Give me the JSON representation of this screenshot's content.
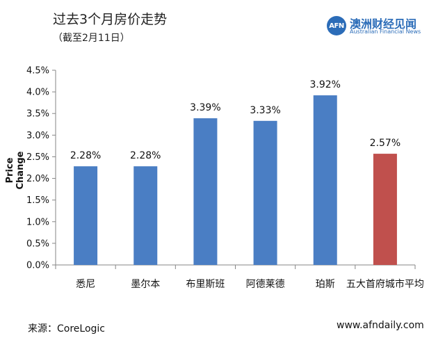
{
  "header": {
    "title": "过去3个月房价走势",
    "subtitle": "（截至2月11日）"
  },
  "logo": {
    "mark": "AFN",
    "name_cn": "澳洲财经见闻",
    "name_en": "Australian Financial News"
  },
  "chart_data": {
    "type": "bar",
    "title": "过去3个月房价走势",
    "ylabel": "Price Change",
    "ylim": [
      0,
      4.5
    ],
    "yticks": [
      0,
      0.5,
      1.0,
      1.5,
      2.0,
      2.5,
      3.0,
      3.5,
      4.0,
      4.5
    ],
    "ytick_labels": [
      "0.0%",
      "0.5%",
      "1.0%",
      "1.5%",
      "2.0%",
      "2.5%",
      "3.0%",
      "3.5%",
      "4.0%",
      "4.5%"
    ],
    "categories": [
      "悉尼",
      "墨尔本",
      "布里斯班",
      "阿德莱德",
      "珀斯",
      "五大首府城市平均"
    ],
    "values": [
      2.28,
      2.28,
      3.39,
      3.33,
      3.92,
      2.57
    ],
    "data_labels": [
      "2.28%",
      "2.28%",
      "3.39%",
      "3.33%",
      "3.92%",
      "2.57%"
    ],
    "colors": [
      "#4a7ec4",
      "#4a7ec4",
      "#4a7ec4",
      "#4a7ec4",
      "#4a7ec4",
      "#c0504d"
    ],
    "grid": false,
    "legend": "none"
  },
  "footer": {
    "source": "来源：CoreLogic",
    "website": "www.afndaily.com"
  }
}
